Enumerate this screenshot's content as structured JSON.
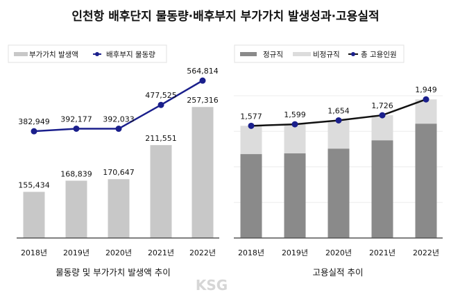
{
  "title": "인천항 배후단지 물동량·배후부지 부가가치 발생성과·고용실적",
  "watermark": "KSG",
  "chart_data": [
    {
      "type": "bar+line",
      "title": "물동량 및 부가가치 발생액 추이",
      "categories": [
        "2018년",
        "2019년",
        "2020년",
        "2021년",
        "2022년"
      ],
      "series": [
        {
          "name": "부가가치 발생액",
          "kind": "bar",
          "color": "#c8c8c8",
          "values": [
            155434,
            168839,
            170647,
            211551,
            257316
          ],
          "labels": [
            "155,434",
            "168,839",
            "170,647",
            "211,551",
            "257,316"
          ]
        },
        {
          "name": "배후부지 물동량",
          "kind": "line",
          "color": "#1a1f8c",
          "values": [
            382949,
            392177,
            392033,
            477525,
            564814
          ],
          "labels": [
            "382,949",
            "392,177",
            "392,033",
            "477,525",
            "564,814"
          ]
        }
      ],
      "bar_ylim": [
        100000,
        280000
      ],
      "line_ylim": [
        0,
        600000
      ],
      "legend": "top-left",
      "grid": false
    },
    {
      "type": "stacked-bar+line",
      "title": "고용실적 추이",
      "categories": [
        "2018년",
        "2019년",
        "2020년",
        "2021년",
        "2022년"
      ],
      "series": [
        {
          "name": "정규직",
          "kind": "bar",
          "color": "#8a8a8a",
          "values": [
            1180,
            1190,
            1257,
            1374,
            1608
          ]
        },
        {
          "name": "비정규직",
          "kind": "bar",
          "color": "#dcdcdc",
          "values": [
            397,
            409,
            397,
            352,
            341
          ]
        },
        {
          "name": "총 고용인원",
          "kind": "line",
          "color": "#1a1f8c",
          "line_color": "#111111",
          "values": [
            1577,
            1599,
            1654,
            1726,
            1949
          ],
          "labels": [
            "1,577",
            "1,599",
            "1,654",
            "1,726",
            "1,949"
          ]
        }
      ],
      "ylim": [
        0,
        2000
      ],
      "legend": "top-left",
      "grid": true
    }
  ]
}
